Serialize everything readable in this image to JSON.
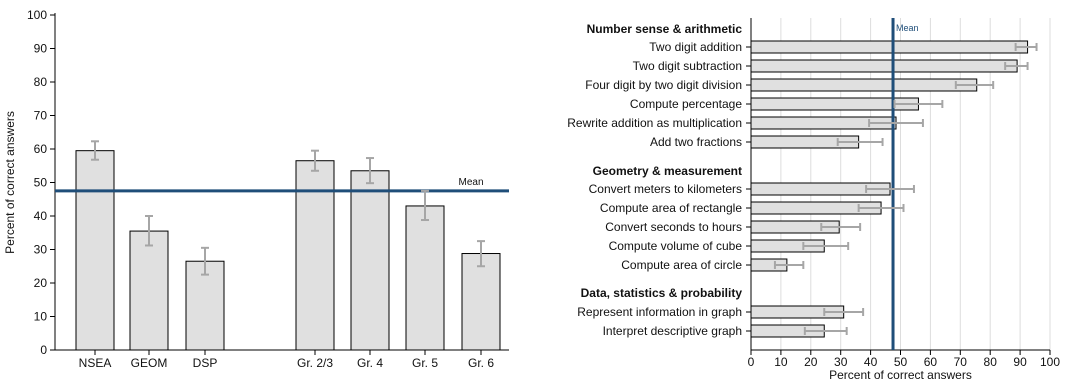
{
  "colors": {
    "bar_fill": "#e0e0e0",
    "bar_stroke": "#000000",
    "error_bar": "#a6a6a6",
    "mean_line": "#1f4e79",
    "grid": "#dddddd"
  },
  "chart_data": [
    {
      "type": "bar",
      "orientation": "vertical",
      "ylabel": "Percent of correct answers",
      "xlabel": "",
      "ylim": [
        0,
        100
      ],
      "yticks": [
        0,
        10,
        20,
        30,
        40,
        50,
        60,
        70,
        80,
        90,
        100
      ],
      "categories": [
        "NSEA",
        "GEOM",
        "DSP",
        "Gr. 2/3",
        "Gr. 4",
        "Gr. 5",
        "Gr. 6"
      ],
      "values": [
        59.5,
        35.5,
        26.5,
        56.5,
        53.5,
        43.0,
        28.8
      ],
      "error_low": [
        56.8,
        31.2,
        22.5,
        53.5,
        49.8,
        38.8,
        25.0
      ],
      "error_high": [
        62.3,
        40.0,
        30.5,
        59.5,
        57.3,
        47.5,
        32.5
      ],
      "mean": 47.5,
      "mean_label": "Mean",
      "grid": false
    },
    {
      "type": "bar",
      "orientation": "horizontal",
      "xlabel": "Percent of correct answers",
      "ylabel": "",
      "xlim": [
        0,
        100
      ],
      "xticks": [
        0,
        10,
        20,
        30,
        40,
        50,
        60,
        70,
        80,
        90,
        100
      ],
      "mean": 47.5,
      "mean_label": "Mean",
      "grid": true,
      "groups": [
        {
          "title": "Number sense & arithmetic",
          "items": [
            {
              "label": "Two digit addition",
              "value": 92.5,
              "low": 88.5,
              "high": 95.5
            },
            {
              "label": "Two digit subtraction",
              "value": 89.0,
              "low": 85.0,
              "high": 92.5
            },
            {
              "label": "Four digit by two digit division",
              "value": 75.5,
              "low": 68.5,
              "high": 81.0
            },
            {
              "label": "Compute percentage",
              "value": 56.0,
              "low": 48.0,
              "high": 64.0
            },
            {
              "label": "Rewrite addition as multiplication",
              "value": 48.5,
              "low": 39.5,
              "high": 57.5
            },
            {
              "label": "Add two fractions",
              "value": 36.0,
              "low": 29.0,
              "high": 44.0
            }
          ]
        },
        {
          "title": "Geometry & measurement",
          "items": [
            {
              "label": "Convert meters to kilometers",
              "value": 46.5,
              "low": 38.5,
              "high": 54.5
            },
            {
              "label": "Compute area of rectangle",
              "value": 43.5,
              "low": 36.0,
              "high": 51.0
            },
            {
              "label": "Convert seconds to hours",
              "value": 29.5,
              "low": 23.5,
              "high": 36.5
            },
            {
              "label": "Compute volume of cube",
              "value": 24.5,
              "low": 17.5,
              "high": 32.5
            },
            {
              "label": "Compute area of circle",
              "value": 12.0,
              "low": 8.0,
              "high": 17.5
            }
          ]
        },
        {
          "title": "Data, statistics & probability",
          "items": [
            {
              "label": "Represent information in graph",
              "value": 31.0,
              "low": 24.5,
              "high": 37.5
            },
            {
              "label": "Interpret descriptive graph",
              "value": 24.5,
              "low": 18.0,
              "high": 32.0
            }
          ]
        }
      ]
    }
  ]
}
